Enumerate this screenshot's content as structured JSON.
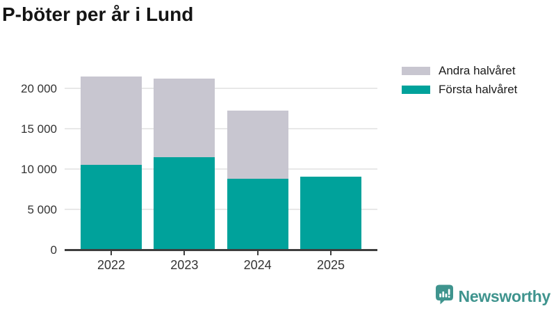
{
  "title": "P-böter per år i Lund",
  "chart_data": {
    "type": "bar",
    "stacked": true,
    "title": "P-böter per år i Lund",
    "categories": [
      "2022",
      "2023",
      "2024",
      "2025"
    ],
    "series": [
      {
        "name": "Första halvåret",
        "color": "#00a29b",
        "values": [
          10500,
          11400,
          8800,
          9000
        ]
      },
      {
        "name": "Andra halvåret",
        "color": "#c8c6d0",
        "values": [
          10900,
          9750,
          8400,
          0
        ]
      }
    ],
    "xlabel": "",
    "ylabel": "",
    "ylim": [
      0,
      22500
    ],
    "yticks": [
      0,
      5000,
      10000,
      15000,
      20000
    ],
    "ytick_labels": [
      "0",
      "5 000",
      "10 000",
      "15 000",
      "20 000"
    ],
    "grid": true,
    "legend_position": "top-right",
    "legend_order": [
      "Andra halvåret",
      "Första halvåret"
    ]
  },
  "legend": {
    "items": [
      {
        "label": "Andra halvåret",
        "color": "#c8c6d0"
      },
      {
        "label": "Första halvåret",
        "color": "#00a29b"
      }
    ]
  },
  "branding": {
    "logo_text": "Newsworthy",
    "logo_icon": "bar-chart-speech-bubble-icon",
    "logo_color": "#3f948e"
  },
  "style_colors": {
    "first_half": "#00a29b",
    "second_half": "#c8c6d0",
    "gridline": "#e8e8e8",
    "axis": "#3d3d3d",
    "text": "#333333",
    "title_text": "#141414"
  }
}
